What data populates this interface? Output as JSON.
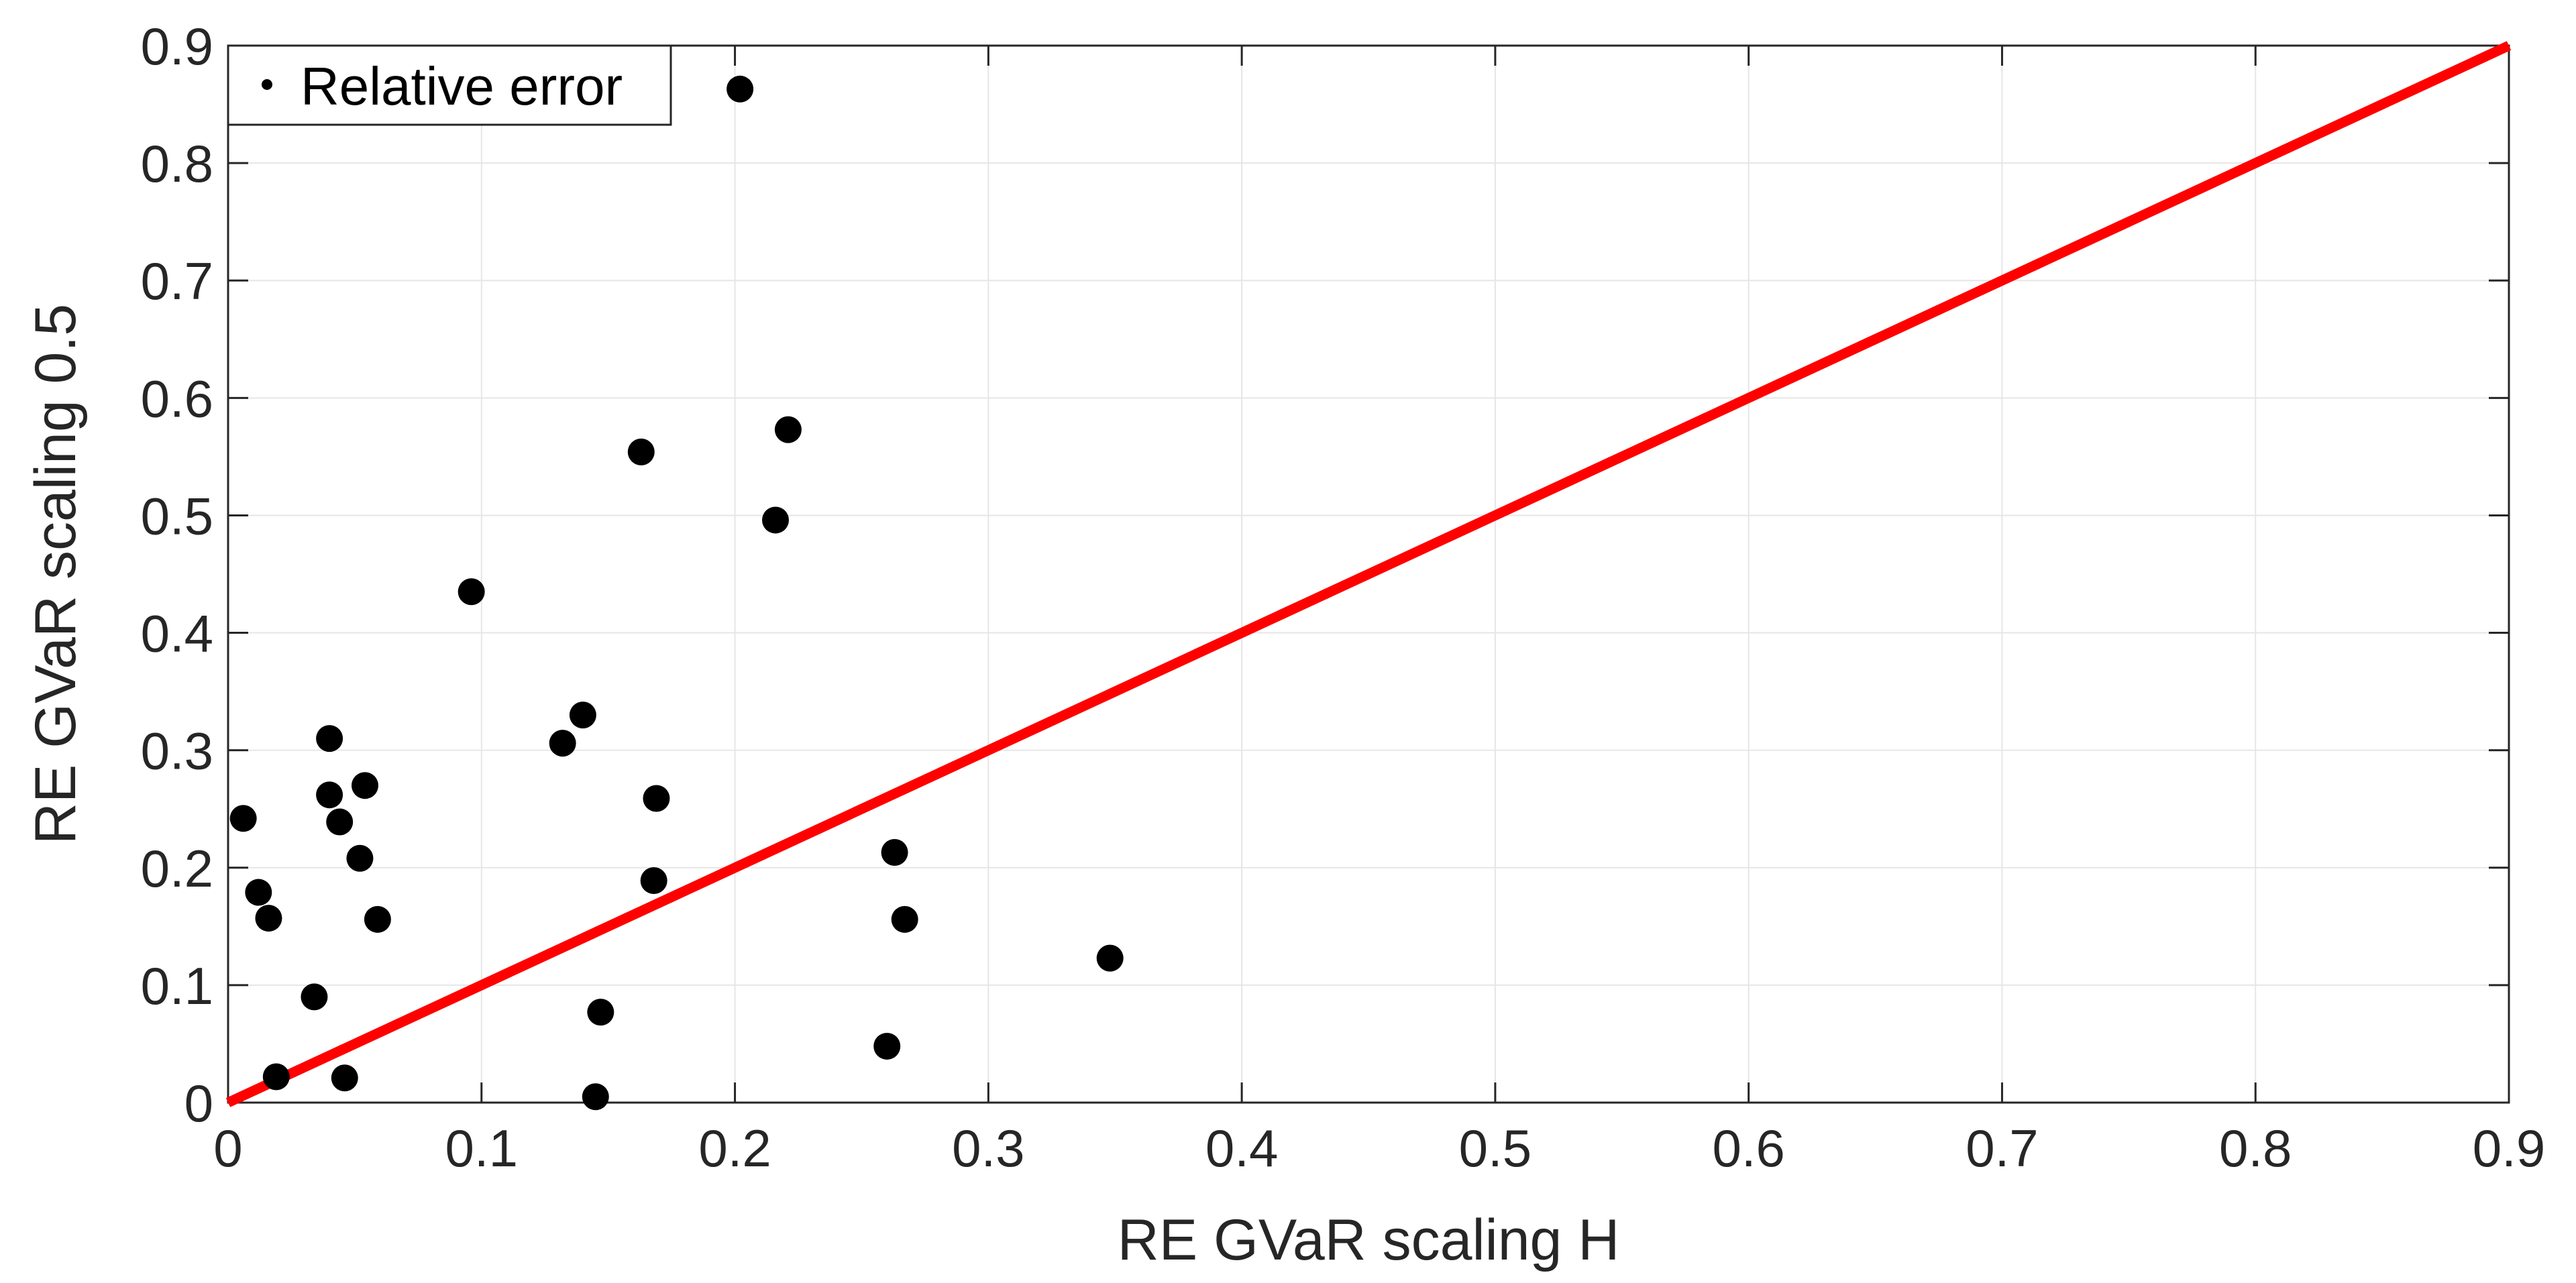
{
  "chart_data": {
    "type": "scatter",
    "title": "",
    "xlabel": "RE GVaR scaling H",
    "ylabel": "RE GVaR scaling 0.5",
    "xlim": [
      0,
      0.9
    ],
    "ylim": [
      0,
      0.9
    ],
    "xticks": [
      0,
      0.1,
      0.2,
      0.3,
      0.4,
      0.5,
      0.6,
      0.7,
      0.8,
      0.9
    ],
    "yticks": [
      0,
      0.1,
      0.2,
      0.3,
      0.4,
      0.5,
      0.6,
      0.7,
      0.8,
      0.9
    ],
    "xtick_labels": [
      "0",
      "0.1",
      "0.2",
      "0.3",
      "0.4",
      "0.5",
      "0.6",
      "0.7",
      "0.8",
      "0.9"
    ],
    "ytick_labels": [
      "0",
      "0.1",
      "0.2",
      "0.3",
      "0.4",
      "0.5",
      "0.6",
      "0.7",
      "0.8",
      "0.9"
    ],
    "grid": true,
    "legend": {
      "position": "top-left",
      "entries": [
        {
          "label": "Relative error",
          "marker": "dot",
          "color": "#000000"
        }
      ]
    },
    "series": [
      {
        "name": "Relative error",
        "kind": "scatter",
        "color": "#000000",
        "points": [
          {
            "x": 0.006,
            "y": 0.242
          },
          {
            "x": 0.012,
            "y": 0.179
          },
          {
            "x": 0.016,
            "y": 0.157
          },
          {
            "x": 0.019,
            "y": 0.022
          },
          {
            "x": 0.034,
            "y": 0.09
          },
          {
            "x": 0.04,
            "y": 0.31
          },
          {
            "x": 0.04,
            "y": 0.262
          },
          {
            "x": 0.044,
            "y": 0.239
          },
          {
            "x": 0.046,
            "y": 0.021
          },
          {
            "x": 0.052,
            "y": 0.208
          },
          {
            "x": 0.054,
            "y": 0.27
          },
          {
            "x": 0.059,
            "y": 0.156
          },
          {
            "x": 0.096,
            "y": 0.435
          },
          {
            "x": 0.132,
            "y": 0.306
          },
          {
            "x": 0.14,
            "y": 0.33
          },
          {
            "x": 0.145,
            "y": 0.005
          },
          {
            "x": 0.147,
            "y": 0.077
          },
          {
            "x": 0.163,
            "y": 0.554
          },
          {
            "x": 0.168,
            "y": 0.189
          },
          {
            "x": 0.169,
            "y": 0.259
          },
          {
            "x": 0.202,
            "y": 0.863
          },
          {
            "x": 0.216,
            "y": 0.496
          },
          {
            "x": 0.221,
            "y": 0.573
          },
          {
            "x": 0.26,
            "y": 0.048
          },
          {
            "x": 0.263,
            "y": 0.213
          },
          {
            "x": 0.267,
            "y": 0.156
          },
          {
            "x": 0.348,
            "y": 0.123
          }
        ]
      },
      {
        "name": "Reference line y = x",
        "kind": "line",
        "color": "#ff0000",
        "points": [
          {
            "x": 0,
            "y": 0
          },
          {
            "x": 0.9,
            "y": 0.9
          }
        ]
      }
    ]
  }
}
